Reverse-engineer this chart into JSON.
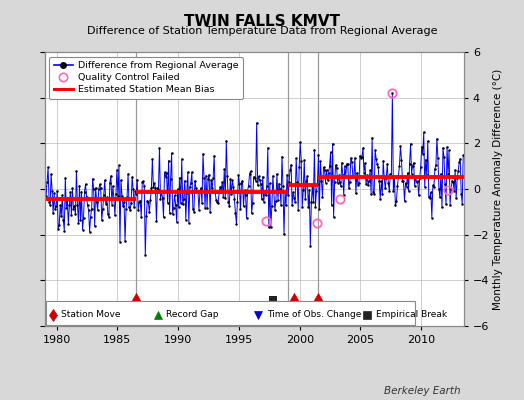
{
  "title": "TWIN FALLS KMVT",
  "subtitle": "Difference of Station Temperature Data from Regional Average",
  "ylabel": "Monthly Temperature Anomaly Difference (°C)",
  "xlabel_years": [
    1980,
    1985,
    1990,
    1995,
    2000,
    2005,
    2010
  ],
  "xlim": [
    1979.0,
    2013.5
  ],
  "ylim": [
    -6,
    6
  ],
  "yticks": [
    -6,
    -4,
    -2,
    0,
    2,
    4,
    6
  ],
  "background_color": "#d8d8d8",
  "plot_bg_color": "#ffffff",
  "grid_color": "#bbbbbb",
  "line_color": "#0000ff",
  "dot_color": "#000000",
  "bias_color": "#ff0000",
  "qc_color": "#ff69b4",
  "station_move_color": "#cc0000",
  "record_gap_color": "#008000",
  "tobs_color": "#0000cc",
  "emp_break_color": "#222222",
  "bias_segments": [
    {
      "start": 1979.0,
      "end": 1986.5,
      "value": -0.45
    },
    {
      "start": 1986.5,
      "end": 1999.0,
      "value": -0.12
    },
    {
      "start": 1999.0,
      "end": 2001.5,
      "value": 0.18
    },
    {
      "start": 2001.5,
      "end": 2013.5,
      "value": 0.52
    }
  ],
  "vertical_lines": [
    1986.5,
    1999.0,
    2001.5
  ],
  "station_moves": [
    1986.5,
    1999.5,
    2001.5
  ],
  "record_gaps": [],
  "tobs_changes": [],
  "empirical_breaks": [
    1997.8
  ],
  "qc_failed_points": [
    [
      1997.25,
      -1.4
    ],
    [
      2001.4,
      -1.5
    ],
    [
      2003.3,
      -0.45
    ],
    [
      2007.6,
      4.2
    ],
    [
      2012.2,
      -0.05
    ]
  ],
  "footer": "Berkeley Earth",
  "seed": 42
}
